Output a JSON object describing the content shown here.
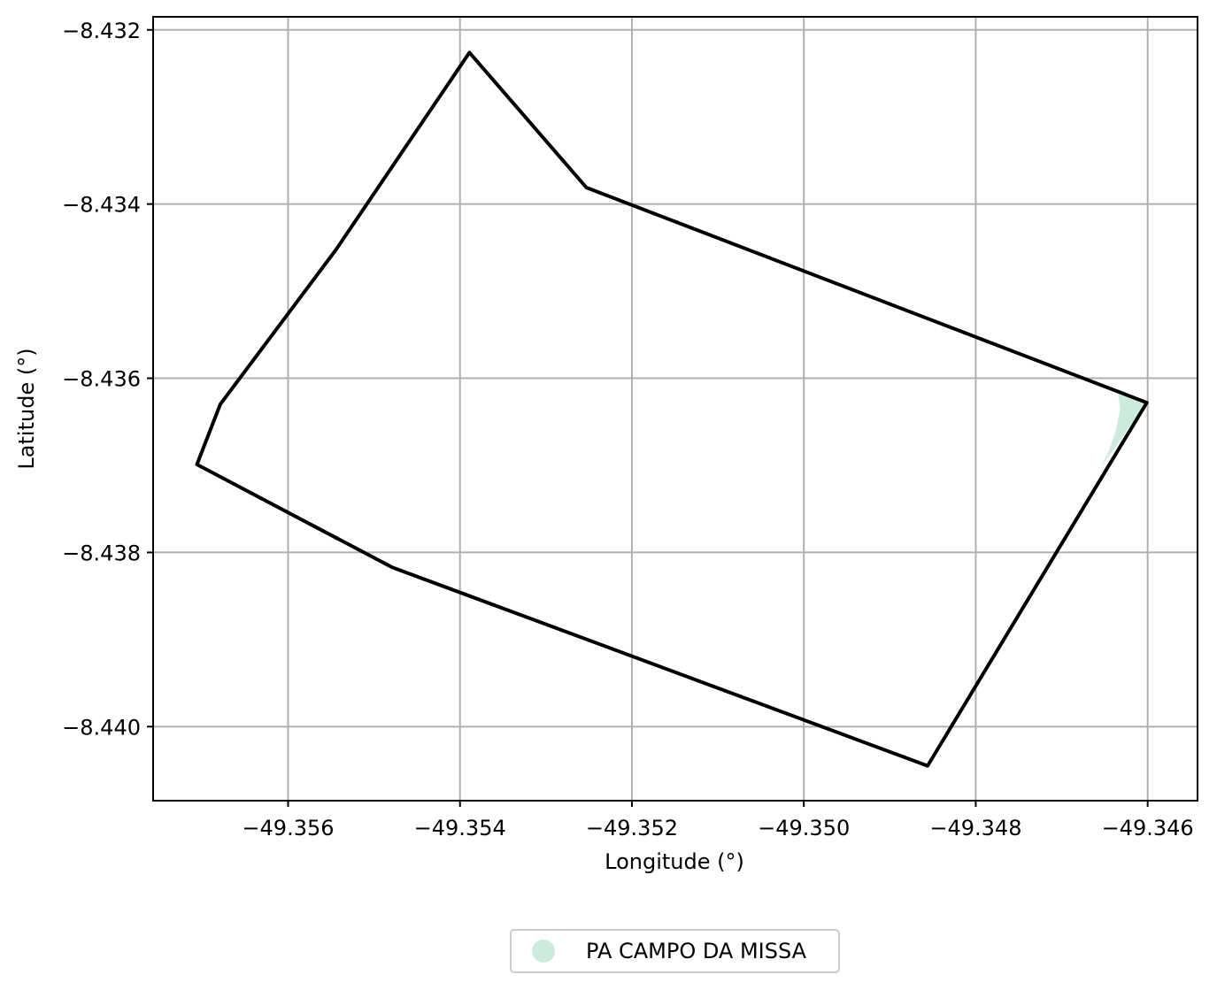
{
  "chart_data": {
    "type": "map",
    "title": "",
    "xlabel": "Longitude (°)",
    "ylabel": "Latitude (°)",
    "xlim": [
      -49.35757,
      -49.34542
    ],
    "ylim": [
      -8.44085,
      -8.43185
    ],
    "xticks": [
      -49.356,
      -49.354,
      -49.352,
      -49.35,
      -49.348,
      -49.346
    ],
    "xtick_labels": [
      "−49.356",
      "−49.354",
      "−49.352",
      "−49.350",
      "−49.348",
      "−49.346"
    ],
    "yticks": [
      -8.432,
      -8.434,
      -8.436,
      -8.438,
      -8.44
    ],
    "ytick_labels": [
      "−8.432",
      "−8.434",
      "−8.436",
      "−8.438",
      "−8.440"
    ],
    "grid": true,
    "legend_position": "bottom-center",
    "legend": [
      {
        "label": "PA CAMPO DA MISSA",
        "color": "#cdebdc"
      }
    ],
    "shapes": [
      {
        "name": "boundary-polygon",
        "kind": "polygon",
        "fill": "none",
        "stroke": "#000000",
        "points": [
          [
            -49.35389,
            -8.43226
          ],
          [
            -49.35253,
            -8.43381
          ],
          [
            -49.34601,
            -8.43628
          ],
          [
            -49.34856,
            -8.44045
          ],
          [
            -49.35479,
            -8.43817
          ],
          [
            -49.35706,
            -8.43699
          ],
          [
            -49.35679,
            -8.4363
          ],
          [
            -49.35544,
            -8.43452
          ],
          [
            -49.35389,
            -8.43226
          ]
        ]
      },
      {
        "name": "pa-campo-da-missa-area",
        "kind": "polygon",
        "fill": "#cdebdc",
        "stroke": "none",
        "points": [
          [
            -49.34601,
            -8.43628
          ],
          [
            -49.34635,
            -8.43612
          ],
          [
            -49.34632,
            -8.43635
          ],
          [
            -49.34637,
            -8.4366
          ],
          [
            -49.34645,
            -8.43683
          ],
          [
            -49.34655,
            -8.43703
          ],
          [
            -49.34601,
            -8.43628
          ]
        ]
      }
    ]
  }
}
